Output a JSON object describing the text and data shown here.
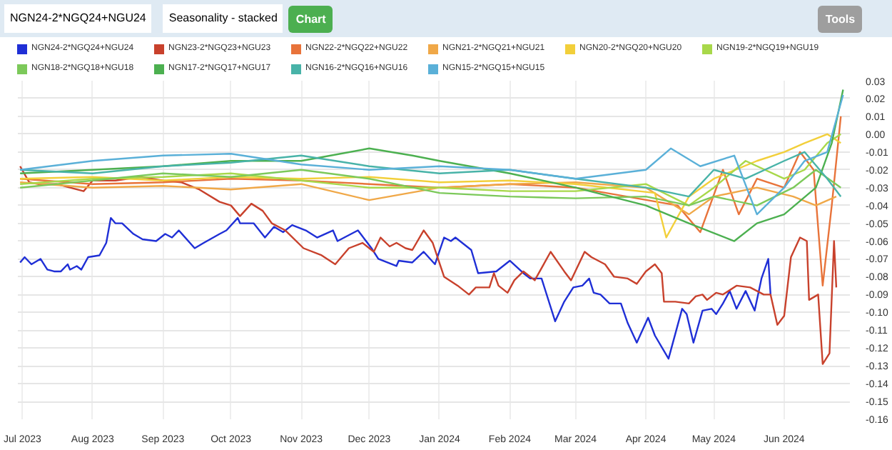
{
  "chart_data": {
    "type": "line",
    "title": "NGN24-2*NGQ24+NGU24",
    "subtitle": "Seasonality - stacked",
    "annotations": [
      "Chart",
      "Tools"
    ],
    "xlim": [
      "2023-06-29",
      "2024-06-30"
    ],
    "xticks": [
      {
        "value": "2023-07-01",
        "label": "Jul 2023"
      },
      {
        "value": "2023-08-01",
        "label": "Aug 2023"
      },
      {
        "value": "2023-09-01",
        "label": "Sep 2023"
      },
      {
        "value": "2023-10-01",
        "label": "Oct 2023"
      },
      {
        "value": "2023-11-01",
        "label": "Nov 2023"
      },
      {
        "value": "2023-12-01",
        "label": "Dec 2023"
      },
      {
        "value": "2024-01-01",
        "label": "Jan 2024"
      },
      {
        "value": "2024-02-01",
        "label": "Feb 2024"
      },
      {
        "value": "2024-03-01",
        "label": "Mar 2024"
      },
      {
        "value": "2024-04-01",
        "label": "Apr 2024"
      },
      {
        "value": "2024-05-01",
        "label": "May 2024"
      },
      {
        "value": "2024-06-01",
        "label": "Jun 2024"
      }
    ],
    "ylim": [
      -0.16,
      0.03
    ],
    "yticks": [
      0.03,
      0.02,
      0.01,
      {
        "value": 0,
        "label": "0.00"
      },
      -0.01,
      -0.02,
      -0.03,
      -0.04,
      -0.05,
      -0.06,
      -0.07,
      -0.08,
      -0.09,
      {
        "value": -0.1,
        "label": "-0.10"
      },
      -0.11,
      -0.12,
      -0.13,
      -0.14,
      -0.15,
      {
        "value": -0.16,
        "label": "-0.16"
      }
    ],
    "grid": true,
    "legend": "top",
    "marker": "none",
    "line_style": "solid",
    "series": [
      {
        "name": "NGN24-2*NGQ24+NGU24",
        "color": "#1f2fd6",
        "x": [
          "2023-06-30",
          "2023-07-02",
          "2023-07-05",
          "2023-07-09",
          "2023-07-12",
          "2023-07-15",
          "2023-07-18",
          "2023-07-21",
          "2023-07-22",
          "2023-07-25",
          "2023-07-27",
          "2023-07-30",
          "2023-08-04",
          "2023-08-07",
          "2023-08-09",
          "2023-08-11",
          "2023-08-14",
          "2023-08-19",
          "2023-08-23",
          "2023-08-29",
          "2023-09-02",
          "2023-09-05",
          "2023-09-08",
          "2023-09-15",
          "2023-09-19",
          "2023-09-26",
          "2023-09-29",
          "2023-10-04",
          "2023-10-05",
          "2023-10-11",
          "2023-10-16",
          "2023-10-20",
          "2023-10-24",
          "2023-10-28",
          "2023-11-03",
          "2023-11-08",
          "2023-11-15",
          "2023-11-17",
          "2023-11-26",
          "2023-12-02",
          "2023-12-05",
          "2023-12-13",
          "2023-12-14",
          "2023-12-20",
          "2023-12-25",
          "2023-12-30",
          "2024-01-03",
          "2024-01-06",
          "2024-01-08",
          "2024-01-15",
          "2024-01-18",
          "2024-01-26",
          "2024-02-01",
          "2024-02-07",
          "2024-02-10",
          "2024-02-15",
          "2024-02-21",
          "2024-02-25",
          "2024-02-29",
          "2024-03-04",
          "2024-03-07",
          "2024-03-09",
          "2024-03-12",
          "2024-03-16",
          "2024-03-21",
          "2024-03-24",
          "2024-03-28",
          "2024-04-02",
          "2024-04-05",
          "2024-04-11",
          "2024-04-17",
          "2024-04-19",
          "2024-04-22",
          "2024-04-26",
          "2024-04-30",
          "2024-05-02",
          "2024-05-05",
          "2024-05-08",
          "2024-05-11",
          "2024-05-15",
          "2024-05-19",
          "2024-05-22",
          "2024-05-25",
          "2024-05-26"
        ],
        "values": [
          -0.072,
          -0.069,
          -0.073,
          -0.07,
          -0.076,
          -0.077,
          -0.077,
          -0.073,
          -0.076,
          -0.074,
          -0.076,
          -0.069,
          -0.068,
          -0.061,
          -0.047,
          -0.05,
          -0.05,
          -0.056,
          -0.059,
          -0.06,
          -0.056,
          -0.058,
          -0.054,
          -0.064,
          -0.061,
          -0.056,
          -0.054,
          -0.047,
          -0.05,
          -0.05,
          -0.058,
          -0.052,
          -0.055,
          -0.051,
          -0.054,
          -0.058,
          -0.054,
          -0.06,
          -0.054,
          -0.064,
          -0.07,
          -0.074,
          -0.071,
          -0.072,
          -0.066,
          -0.073,
          -0.058,
          -0.06,
          -0.058,
          -0.065,
          -0.078,
          -0.077,
          -0.071,
          -0.078,
          -0.081,
          -0.081,
          -0.105,
          -0.094,
          -0.086,
          -0.085,
          -0.081,
          -0.089,
          -0.09,
          -0.095,
          -0.095,
          -0.106,
          -0.117,
          -0.103,
          -0.113,
          -0.126,
          -0.098,
          -0.101,
          -0.117,
          -0.099,
          -0.098,
          -0.101,
          -0.095,
          -0.088,
          -0.098,
          -0.088,
          -0.099,
          -0.081,
          -0.07,
          -0.09
        ]
      },
      {
        "name": "NGN23-2*NGQ23+NGU23",
        "color": "#c8412c",
        "x": [
          "2023-06-30",
          "2023-07-04",
          "2023-07-08",
          "2023-07-16",
          "2023-07-22",
          "2023-07-28",
          "2023-08-01",
          "2023-08-11",
          "2023-08-22",
          "2023-09-01",
          "2023-09-09",
          "2023-09-17",
          "2023-09-26",
          "2023-10-01",
          "2023-10-05",
          "2023-10-10",
          "2023-10-15",
          "2023-10-19",
          "2023-10-25",
          "2023-11-02",
          "2023-11-10",
          "2023-11-16",
          "2023-11-22",
          "2023-11-28",
          "2023-12-03",
          "2023-12-06",
          "2023-12-10",
          "2023-12-13",
          "2023-12-17",
          "2023-12-20",
          "2023-12-25",
          "2023-12-29",
          "2024-01-03",
          "2024-01-09",
          "2024-01-14",
          "2024-01-17",
          "2024-01-23",
          "2024-01-25",
          "2024-01-27",
          "2024-01-31",
          "2024-02-03",
          "2024-02-07",
          "2024-02-12",
          "2024-02-19",
          "2024-02-25",
          "2024-02-28",
          "2024-03-05",
          "2024-03-08",
          "2024-03-14",
          "2024-03-18",
          "2024-03-24",
          "2024-03-28",
          "2024-04-01",
          "2024-04-05",
          "2024-04-08",
          "2024-04-09",
          "2024-04-14",
          "2024-04-20",
          "2024-04-23",
          "2024-04-26",
          "2024-04-28",
          "2024-05-02",
          "2024-05-05",
          "2024-05-11",
          "2024-05-17",
          "2024-05-23",
          "2024-05-26",
          "2024-05-29",
          "2024-06-01",
          "2024-06-04",
          "2024-06-08",
          "2024-06-11",
          "2024-06-12",
          "2024-06-16",
          "2024-06-18",
          "2024-06-21",
          "2024-06-23",
          "2024-06-24"
        ],
        "values": [
          -0.018,
          -0.027,
          -0.028,
          -0.028,
          -0.03,
          -0.032,
          -0.026,
          -0.026,
          -0.024,
          -0.026,
          -0.027,
          -0.031,
          -0.038,
          -0.04,
          -0.046,
          -0.039,
          -0.043,
          -0.05,
          -0.054,
          -0.064,
          -0.068,
          -0.073,
          -0.064,
          -0.061,
          -0.066,
          -0.058,
          -0.063,
          -0.061,
          -0.064,
          -0.065,
          -0.054,
          -0.061,
          -0.08,
          -0.085,
          -0.09,
          -0.086,
          -0.086,
          -0.078,
          -0.085,
          -0.089,
          -0.082,
          -0.077,
          -0.082,
          -0.066,
          -0.077,
          -0.082,
          -0.066,
          -0.069,
          -0.073,
          -0.08,
          -0.081,
          -0.084,
          -0.077,
          -0.073,
          -0.078,
          -0.094,
          -0.094,
          -0.095,
          -0.091,
          -0.09,
          -0.093,
          -0.089,
          -0.09,
          -0.085,
          -0.086,
          -0.09,
          -0.09,
          -0.107,
          -0.102,
          -0.069,
          -0.058,
          -0.06,
          -0.093,
          -0.09,
          -0.129,
          -0.123,
          -0.06,
          -0.086
        ]
      },
      {
        "name": "NGN22-2*NGQ22+NGU22",
        "color": "#e8733a",
        "x": [
          "2023-06-30",
          "2023-08-01",
          "2023-09-01",
          "2023-10-01",
          "2023-11-01",
          "2023-12-01",
          "2024-01-01",
          "2024-02-01",
          "2024-03-01",
          "2024-04-15",
          "2024-04-25",
          "2024-05-05",
          "2024-05-12",
          "2024-05-20",
          "2024-06-01",
          "2024-06-08",
          "2024-06-14",
          "2024-06-18",
          "2024-06-22",
          "2024-06-26"
        ],
        "values": [
          -0.025,
          -0.028,
          -0.027,
          -0.025,
          -0.026,
          -0.028,
          -0.03,
          -0.028,
          -0.03,
          -0.04,
          -0.055,
          -0.02,
          -0.045,
          -0.025,
          -0.03,
          -0.01,
          -0.02,
          -0.085,
          -0.04,
          0.01
        ]
      },
      {
        "name": "NGN21-2*NGQ21+NGU21",
        "color": "#f0a848",
        "x": [
          "2023-06-30",
          "2023-08-01",
          "2023-09-01",
          "2023-10-01",
          "2023-11-01",
          "2023-12-01",
          "2024-01-01",
          "2024-02-01",
          "2024-03-01",
          "2024-04-01",
          "2024-04-20",
          "2024-05-01",
          "2024-05-20",
          "2024-06-05",
          "2024-06-15",
          "2024-06-24"
        ],
        "values": [
          -0.027,
          -0.03,
          -0.029,
          -0.031,
          -0.028,
          -0.037,
          -0.03,
          -0.028,
          -0.027,
          -0.03,
          -0.045,
          -0.035,
          -0.03,
          -0.035,
          -0.04,
          -0.035
        ]
      },
      {
        "name": "NGN20-2*NGQ20+NGU20",
        "color": "#f2cf3a",
        "x": [
          "2023-06-30",
          "2023-08-01",
          "2023-09-01",
          "2023-10-01",
          "2023-11-01",
          "2023-12-01",
          "2024-01-01",
          "2024-02-01",
          "2024-03-01",
          "2024-04-05",
          "2024-04-10",
          "2024-04-20",
          "2024-05-01",
          "2024-05-20",
          "2024-06-01",
          "2024-06-10",
          "2024-06-20",
          "2024-06-26"
        ],
        "values": [
          -0.025,
          -0.024,
          -0.026,
          -0.024,
          -0.025,
          -0.024,
          -0.027,
          -0.026,
          -0.028,
          -0.033,
          -0.058,
          -0.035,
          -0.025,
          -0.015,
          -0.01,
          -0.005,
          0,
          -0.005
        ]
      },
      {
        "name": "NGN19-2*NGQ19+NGU19",
        "color": "#a8d84a",
        "x": [
          "2023-06-30",
          "2023-08-01",
          "2023-09-01",
          "2023-10-01",
          "2023-11-01",
          "2023-12-01",
          "2024-01-01",
          "2024-02-01",
          "2024-03-01",
          "2024-04-01",
          "2024-04-20",
          "2024-05-01",
          "2024-05-15",
          "2024-06-01",
          "2024-06-10",
          "2024-06-20",
          "2024-06-26"
        ],
        "values": [
          -0.028,
          -0.025,
          -0.024,
          -0.022,
          -0.026,
          -0.03,
          -0.03,
          -0.032,
          -0.032,
          -0.028,
          -0.04,
          -0.03,
          -0.015,
          -0.025,
          -0.02,
          -0.005,
          0
        ]
      },
      {
        "name": "NGN18-2*NGQ18+NGU18",
        "color": "#7cc95a",
        "x": [
          "2023-06-30",
          "2023-08-01",
          "2023-09-01",
          "2023-10-01",
          "2023-11-01",
          "2023-12-01",
          "2024-01-01",
          "2024-02-01",
          "2024-03-01",
          "2024-04-01",
          "2024-04-20",
          "2024-05-01",
          "2024-05-20",
          "2024-06-05",
          "2024-06-15",
          "2024-06-26"
        ],
        "values": [
          -0.03,
          -0.026,
          -0.022,
          -0.024,
          -0.02,
          -0.025,
          -0.033,
          -0.035,
          -0.036,
          -0.035,
          -0.04,
          -0.035,
          -0.04,
          -0.03,
          -0.02,
          -0.03
        ]
      },
      {
        "name": "NGN17-2*NGQ17+NGU17",
        "color": "#4cb050",
        "x": [
          "2023-06-30",
          "2023-08-01",
          "2023-09-01",
          "2023-10-01",
          "2023-11-01",
          "2023-12-01",
          "2023-12-20",
          "2024-01-01",
          "2024-02-01",
          "2024-03-01",
          "2024-04-01",
          "2024-04-20",
          "2024-05-10",
          "2024-05-20",
          "2024-06-01",
          "2024-06-15",
          "2024-06-22",
          "2024-06-27"
        ],
        "values": [
          -0.022,
          -0.02,
          -0.018,
          -0.015,
          -0.015,
          -0.008,
          -0.012,
          -0.015,
          -0.022,
          -0.03,
          -0.04,
          -0.05,
          -0.06,
          -0.05,
          -0.045,
          -0.03,
          -0.005,
          0.025
        ]
      },
      {
        "name": "NGN16-2*NGQ16+NGU16",
        "color": "#48b3a8",
        "x": [
          "2023-06-30",
          "2023-08-01",
          "2023-09-01",
          "2023-10-01",
          "2023-11-01",
          "2023-12-01",
          "2024-01-01",
          "2024-02-01",
          "2024-03-01",
          "2024-04-01",
          "2024-04-20",
          "2024-05-01",
          "2024-05-15",
          "2024-06-01",
          "2024-06-10",
          "2024-06-20",
          "2024-06-26"
        ],
        "values": [
          -0.02,
          -0.022,
          -0.018,
          -0.016,
          -0.012,
          -0.018,
          -0.022,
          -0.02,
          -0.025,
          -0.03,
          -0.035,
          -0.02,
          -0.025,
          -0.015,
          -0.01,
          -0.025,
          -0.035
        ]
      },
      {
        "name": "NGN15-2*NGQ15+NGU15",
        "color": "#5ab0d8",
        "x": [
          "2023-06-30",
          "2023-08-01",
          "2023-09-01",
          "2023-10-01",
          "2023-11-01",
          "2023-12-01",
          "2024-01-01",
          "2024-02-01",
          "2024-03-01",
          "2024-04-01",
          "2024-04-12",
          "2024-04-25",
          "2024-05-10",
          "2024-05-20",
          "2024-06-01",
          "2024-06-10",
          "2024-06-20",
          "2024-06-27"
        ],
        "values": [
          -0.02,
          -0.015,
          -0.012,
          -0.011,
          -0.017,
          -0.02,
          -0.018,
          -0.02,
          -0.025,
          -0.02,
          -0.008,
          -0.018,
          -0.012,
          -0.045,
          -0.03,
          -0.015,
          -0.01,
          0.022
        ]
      }
    ]
  }
}
